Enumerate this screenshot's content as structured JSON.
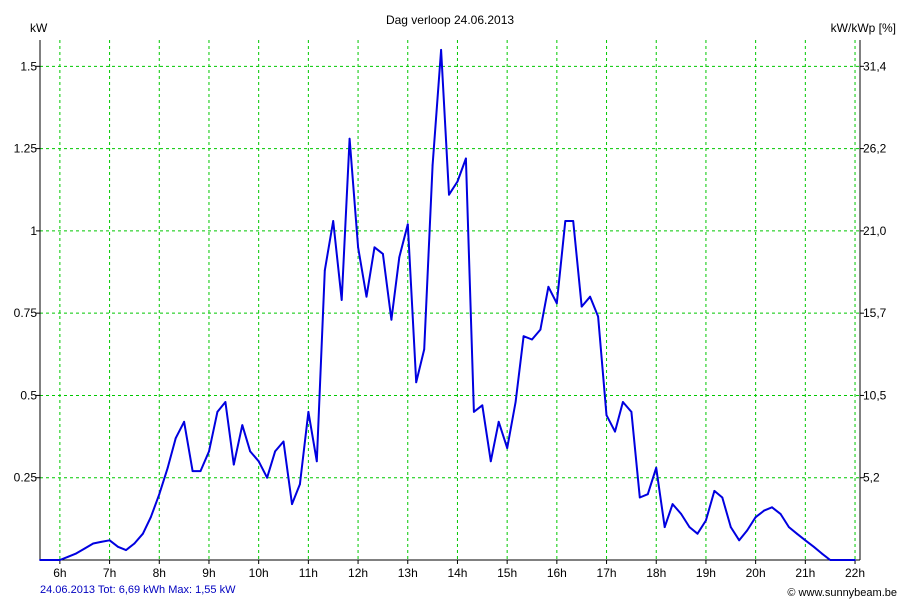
{
  "chart_data": {
    "type": "line",
    "title": "Dag  verloop 24.06.2013",
    "ylabel": "kW",
    "y2label": "kW/kWp [%]",
    "xlim": [
      5.6,
      22.1
    ],
    "ylim": [
      0,
      1.58
    ],
    "grid": true,
    "x_ticks": [
      6,
      7,
      8,
      9,
      10,
      11,
      12,
      13,
      14,
      15,
      16,
      17,
      18,
      19,
      20,
      21,
      22
    ],
    "x_tick_labels": [
      "6h",
      "7h",
      "8h",
      "9h",
      "10h",
      "11h",
      "12h",
      "13h",
      "14h",
      "15h",
      "16h",
      "17h",
      "18h",
      "19h",
      "20h",
      "21h",
      "22h"
    ],
    "y_ticks": [
      0.25,
      0.5,
      0.75,
      1,
      1.25,
      1.5
    ],
    "y_tick_labels": [
      "0.25",
      "0.5",
      "0.75",
      "1",
      "1.25",
      "1.5"
    ],
    "y2_tick_labels": [
      "5,2",
      "10,5",
      "15,7",
      "21,0",
      "26,2",
      "31,4"
    ],
    "colors": {
      "line": "#0000e0",
      "grid": "#00c800",
      "axis": "#000000",
      "footer_left": "#0000c0"
    },
    "series": [
      {
        "x": [
          5.6,
          6.0,
          6.17,
          6.33,
          6.5,
          6.67,
          6.83,
          7.0,
          7.17,
          7.33,
          7.5,
          7.67,
          7.83,
          8.0,
          8.17,
          8.33,
          8.5,
          8.67,
          8.83,
          9.0,
          9.17,
          9.33,
          9.5,
          9.67,
          9.83,
          10.0,
          10.17,
          10.33,
          10.5,
          10.67,
          10.83,
          11.0,
          11.17,
          11.33,
          11.5,
          11.67,
          11.83,
          12.0,
          12.17,
          12.33,
          12.5,
          12.67,
          12.83,
          13.0,
          13.17,
          13.33,
          13.5,
          13.67,
          13.83,
          14.0,
          14.17,
          14.33,
          14.5,
          14.67,
          14.83,
          15.0,
          15.17,
          15.33,
          15.5,
          15.67,
          15.83,
          16.0,
          16.17,
          16.33,
          16.5,
          16.67,
          16.83,
          17.0,
          17.17,
          17.33,
          17.5,
          17.67,
          17.83,
          18.0,
          18.17,
          18.33,
          18.5,
          18.67,
          18.83,
          19.0,
          19.17,
          19.33,
          19.5,
          19.67,
          19.83,
          20.0,
          20.17,
          20.33,
          20.5,
          20.67,
          20.83,
          21.0,
          21.17,
          21.33,
          21.5,
          21.67,
          22.0
        ],
        "y": [
          0.0,
          0.0,
          0.01,
          0.02,
          0.035,
          0.05,
          0.055,
          0.06,
          0.04,
          0.03,
          0.05,
          0.08,
          0.13,
          0.2,
          0.28,
          0.37,
          0.42,
          0.27,
          0.27,
          0.33,
          0.45,
          0.48,
          0.29,
          0.41,
          0.33,
          0.3,
          0.25,
          0.33,
          0.36,
          0.17,
          0.23,
          0.45,
          0.3,
          0.88,
          1.03,
          0.79,
          1.28,
          0.95,
          0.8,
          0.95,
          0.93,
          0.73,
          0.92,
          1.02,
          0.54,
          0.64,
          1.2,
          1.55,
          1.11,
          1.15,
          1.22,
          0.45,
          0.47,
          0.3,
          0.42,
          0.34,
          0.48,
          0.68,
          0.67,
          0.7,
          0.83,
          0.78,
          1.03,
          1.03,
          0.77,
          0.8,
          0.74,
          0.44,
          0.39,
          0.48,
          0.45,
          0.19,
          0.2,
          0.28,
          0.1,
          0.17,
          0.14,
          0.1,
          0.08,
          0.12,
          0.21,
          0.19,
          0.1,
          0.06,
          0.09,
          0.13,
          0.15,
          0.16,
          0.14,
          0.1,
          0.08,
          0.06,
          0.04,
          0.02,
          0.0,
          0.0,
          0.0
        ]
      }
    ]
  },
  "footer": {
    "left": "24.06.2013 Tot: 6,69 kWh Max: 1,55 kW",
    "right": "© www.sunnybeam.be"
  }
}
